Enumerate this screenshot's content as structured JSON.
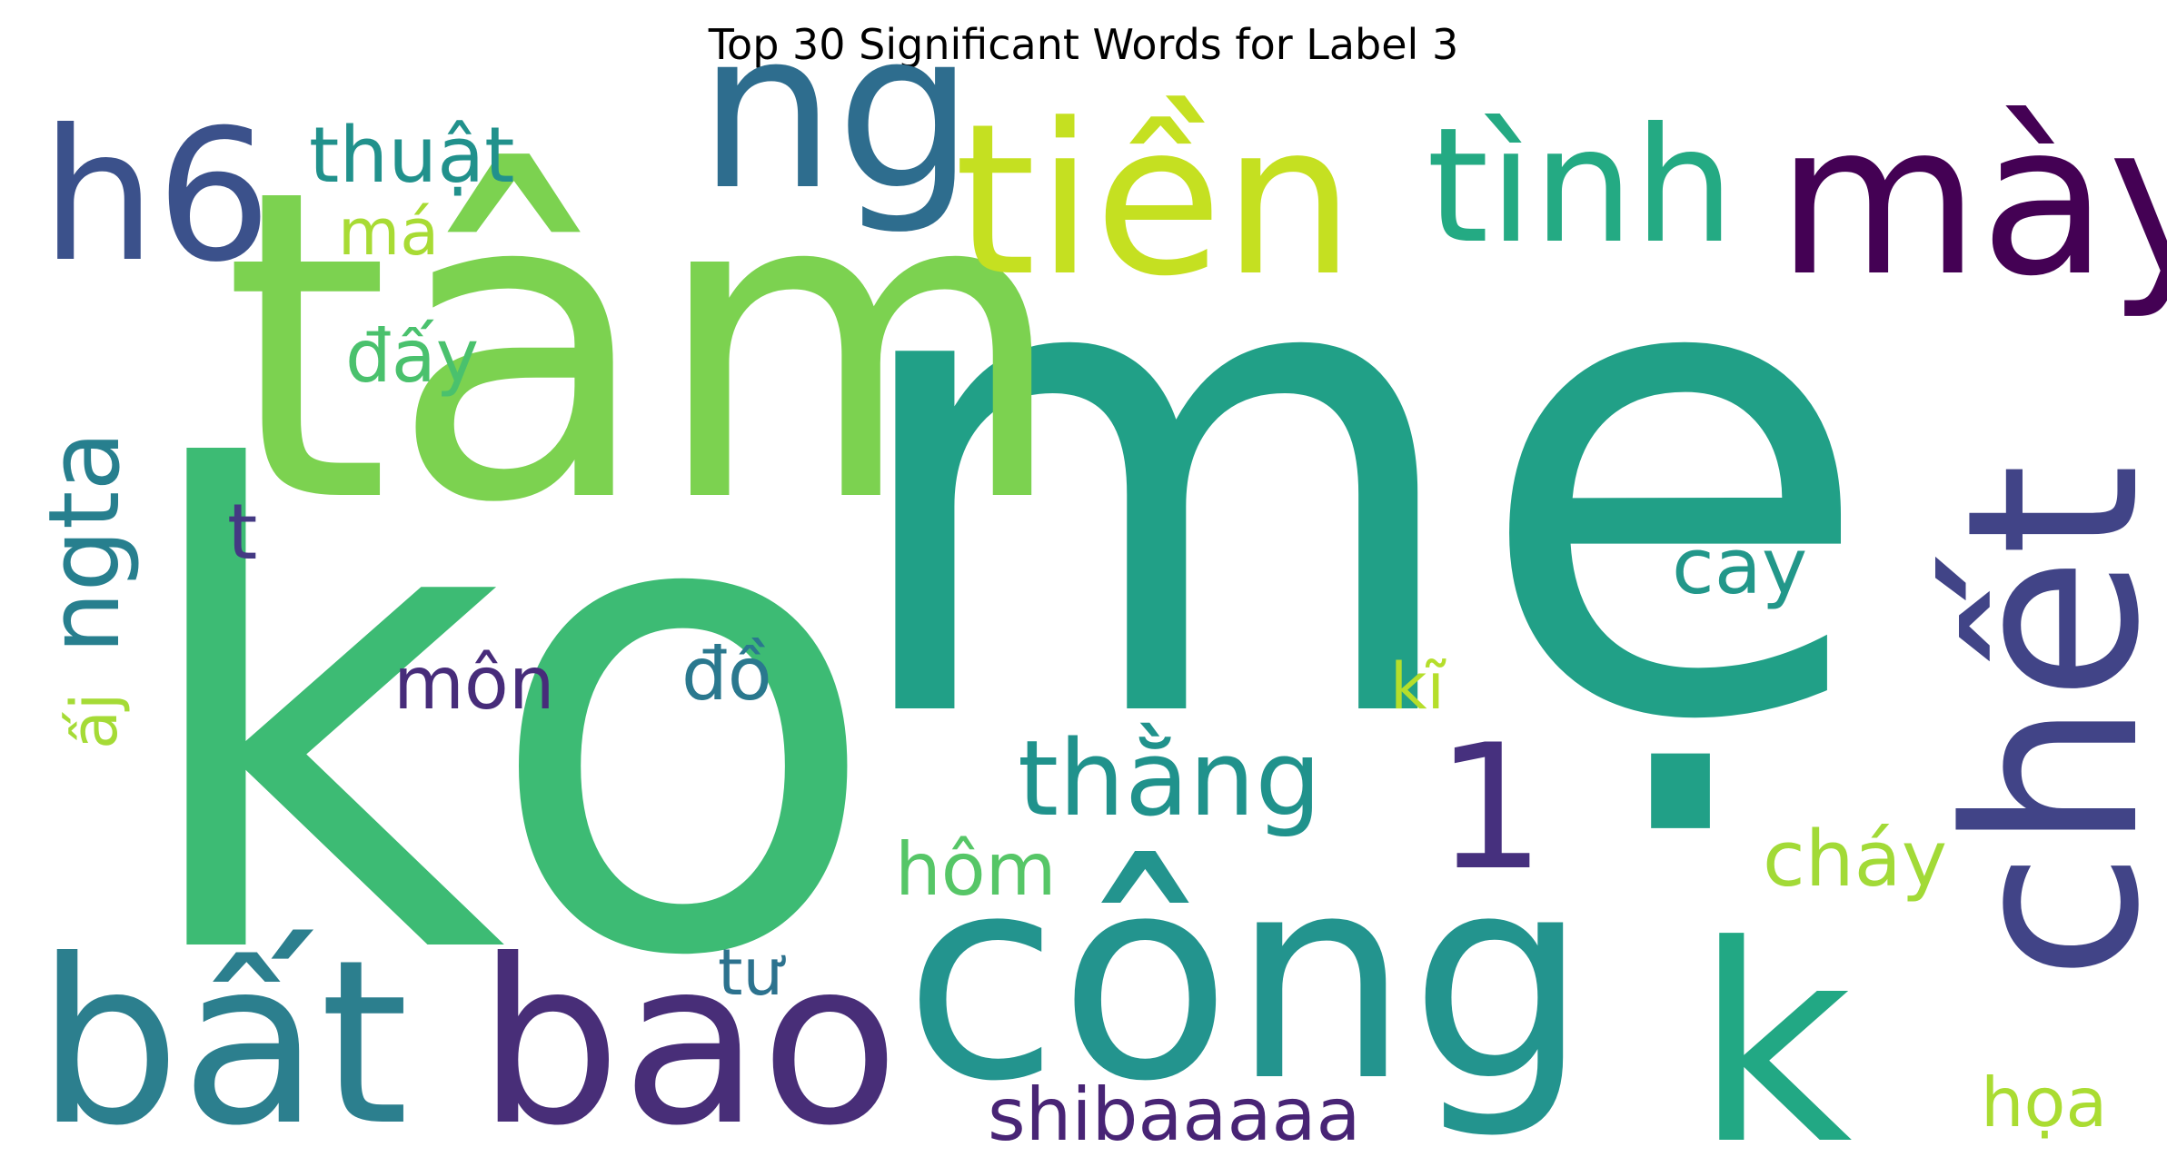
{
  "chart_data": {
    "type": "wordcloud",
    "title": "Top 30 Significant Words for Label 3",
    "words": [
      {
        "text": "mẹ",
        "color": "#21a087"
      },
      {
        "text": "ko",
        "color": "#3dbb74"
      },
      {
        "text": "tâm",
        "color": "#7cd250"
      },
      {
        "text": "công",
        "color": "#23948e"
      },
      {
        "text": "chết",
        "color": "#414487"
      },
      {
        "text": "bất",
        "color": "#2c7f8e"
      },
      {
        "text": "bao",
        "color": "#482e78"
      },
      {
        "text": "ng",
        "color": "#2e6d8e"
      },
      {
        "text": "tiền",
        "color": "#c5e021"
      },
      {
        "text": "mày",
        "color": "#440154"
      },
      {
        "text": "h6",
        "color": "#3b518b"
      },
      {
        "text": "k",
        "color": "#22a884"
      },
      {
        "text": "tình",
        "color": "#24aa83"
      },
      {
        "text": "1",
        "color": "#46307e"
      },
      {
        "text": "thằng",
        "color": "#20928c"
      },
      {
        "text": "ngta",
        "color": "#277f8e"
      },
      {
        "text": "thuật",
        "color": "#21918c"
      },
      {
        "text": "shibaaaaa",
        "color": "#482475"
      },
      {
        "text": "cay",
        "color": "#22978a"
      },
      {
        "text": "môn",
        "color": "#472c7a"
      },
      {
        "text": "cháy",
        "color": "#a2da37"
      },
      {
        "text": "hôm",
        "color": "#56c667"
      },
      {
        "text": "đồ",
        "color": "#2a788e"
      },
      {
        "text": "đấy",
        "color": "#4ac16d"
      },
      {
        "text": "họa",
        "color": "#aadc32"
      },
      {
        "text": "kĩ",
        "color": "#b5de2b"
      },
      {
        "text": "ấj",
        "color": "#a5db36"
      },
      {
        "text": "má",
        "color": "#a8db34"
      },
      {
        "text": "tư",
        "color": "#2c728e"
      },
      {
        "text": "t",
        "color": "#443983"
      }
    ]
  }
}
